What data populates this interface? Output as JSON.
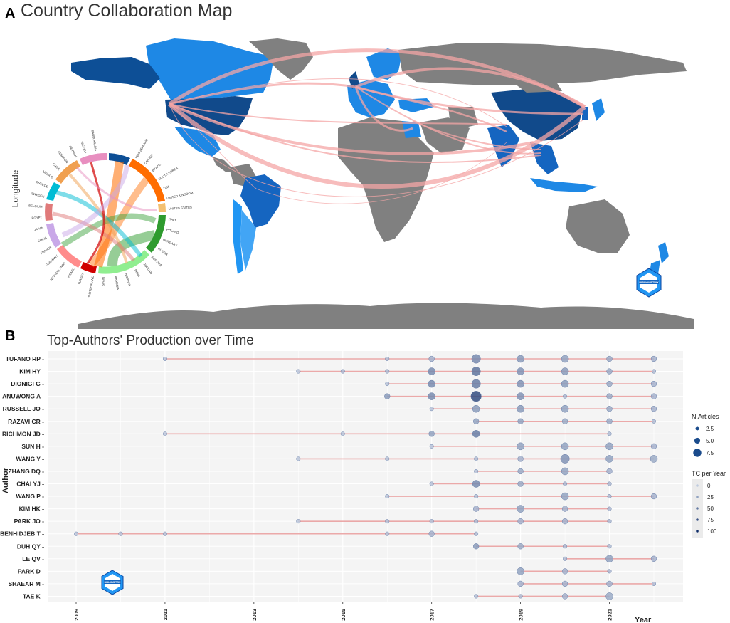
{
  "panelA": {
    "letter": "A",
    "title": "Country Collaboration Map",
    "ylabel": "Longitude",
    "logo_text": "BIBLIOMETRIX",
    "chord_labels": [
      "NEW ZEALAND",
      "CANADA",
      "BRAZIL",
      "SOUTH KOREA",
      "USA",
      "UNITED KINGDOM",
      "UNITED STATES",
      "ITALY",
      "POLAND",
      "HUNGARY",
      "RUSSIA",
      "AUSTRIA",
      "JORDAN",
      "INDIA",
      "NORWAY",
      "ARMENIA",
      "SPAIN",
      "SWITZERLAND",
      "TURKEY",
      "ISRAEL",
      "NETHERLANDS",
      "GERMANY",
      "FRANCE",
      "CHINA",
      "JAPAN",
      "EGYPT",
      "BELGIUM",
      "SWEDEN",
      "GREECE",
      "MEXICO",
      "CHILE",
      "LEBANON",
      "VIETNAM",
      "NIGERIA",
      "SAUDI ARABIA"
    ]
  },
  "panelB": {
    "letter": "B",
    "logo_text": "BIBLIOMETRIX"
  },
  "chart_data": {
    "type": "scatter",
    "title": "Top-Authors' Production over Time",
    "xlabel": "Year",
    "ylabel": "Author",
    "xlim": [
      2009,
      2022
    ],
    "x_ticks": [
      "2009",
      "2011",
      "2013",
      "2015",
      "2017",
      "2019",
      "2021"
    ],
    "authors": [
      "TUFANO RP",
      "KIM HY",
      "DIONIGI G",
      "ANUWONG A",
      "RUSSELL JO",
      "RAZAVI CR",
      "RICHMON JD",
      "SUN H",
      "WANG Y",
      "ZHANG DQ",
      "CHAI YJ",
      "WANG P",
      "KIM HK",
      "PARK JO",
      "BENHIDJEB T",
      "DUH QY",
      "LE QV",
      "PARK D",
      "SHAEAR M",
      "TAE K"
    ],
    "series": [
      {
        "author": "TUFANO RP",
        "points": [
          [
            2011,
            1,
            2
          ],
          [
            2016,
            1,
            5
          ],
          [
            2017,
            2,
            15
          ],
          [
            2018,
            4,
            40
          ],
          [
            2019,
            3,
            30
          ],
          [
            2020,
            3,
            25
          ],
          [
            2021,
            2,
            20
          ],
          [
            2022,
            2,
            15
          ]
        ]
      },
      {
        "author": "KIM HY",
        "points": [
          [
            2014,
            1,
            3
          ],
          [
            2015,
            1,
            10
          ],
          [
            2016,
            1,
            8
          ],
          [
            2017,
            3,
            40
          ],
          [
            2018,
            4,
            55
          ],
          [
            2019,
            3,
            35
          ],
          [
            2020,
            3,
            30
          ],
          [
            2021,
            2,
            20
          ],
          [
            2022,
            1,
            8
          ]
        ]
      },
      {
        "author": "DIONIGI G",
        "points": [
          [
            2016,
            1,
            5
          ],
          [
            2017,
            3,
            40
          ],
          [
            2018,
            4,
            50
          ],
          [
            2019,
            3,
            35
          ],
          [
            2020,
            3,
            30
          ],
          [
            2021,
            2,
            20
          ],
          [
            2022,
            2,
            15
          ]
        ]
      },
      {
        "author": "ANUWONG A",
        "points": [
          [
            2016,
            2,
            30
          ],
          [
            2017,
            3,
            40
          ],
          [
            2018,
            5,
            80
          ],
          [
            2019,
            3,
            35
          ],
          [
            2020,
            1,
            10
          ],
          [
            2021,
            2,
            20
          ],
          [
            2022,
            2,
            15
          ]
        ]
      },
      {
        "author": "RUSSELL JO",
        "points": [
          [
            2017,
            1,
            5
          ],
          [
            2018,
            3,
            30
          ],
          [
            2019,
            3,
            30
          ],
          [
            2020,
            3,
            25
          ],
          [
            2021,
            2,
            20
          ],
          [
            2022,
            2,
            15
          ]
        ]
      },
      {
        "author": "RAZAVI CR",
        "points": [
          [
            2018,
            2,
            25
          ],
          [
            2019,
            2,
            25
          ],
          [
            2020,
            2,
            20
          ],
          [
            2021,
            2,
            20
          ],
          [
            2022,
            1,
            8
          ]
        ]
      },
      {
        "author": "RICHMON JD",
        "points": [
          [
            2011,
            1,
            2
          ],
          [
            2015,
            1,
            4
          ],
          [
            2017,
            2,
            25
          ],
          [
            2018,
            3,
            50
          ],
          [
            2021,
            1,
            8
          ]
        ]
      },
      {
        "author": "SUN H",
        "points": [
          [
            2017,
            1,
            5
          ],
          [
            2019,
            3,
            25
          ],
          [
            2020,
            3,
            25
          ],
          [
            2021,
            3,
            25
          ],
          [
            2022,
            2,
            15
          ]
        ]
      },
      {
        "author": "WANG Y",
        "points": [
          [
            2014,
            1,
            3
          ],
          [
            2016,
            1,
            5
          ],
          [
            2018,
            1,
            8
          ],
          [
            2019,
            2,
            15
          ],
          [
            2020,
            4,
            35
          ],
          [
            2021,
            3,
            25
          ],
          [
            2022,
            3,
            20
          ]
        ]
      },
      {
        "author": "ZHANG DQ",
        "points": [
          [
            2018,
            1,
            5
          ],
          [
            2019,
            2,
            20
          ],
          [
            2020,
            3,
            25
          ],
          [
            2021,
            2,
            15
          ]
        ]
      },
      {
        "author": "CHAI YJ",
        "points": [
          [
            2017,
            1,
            5
          ],
          [
            2018,
            3,
            40
          ],
          [
            2019,
            2,
            20
          ],
          [
            2020,
            1,
            10
          ],
          [
            2021,
            1,
            10
          ]
        ]
      },
      {
        "author": "WANG P",
        "points": [
          [
            2016,
            1,
            4
          ],
          [
            2018,
            1,
            6
          ],
          [
            2020,
            3,
            25
          ],
          [
            2021,
            1,
            10
          ],
          [
            2022,
            2,
            15
          ]
        ]
      },
      {
        "author": "KIM HK",
        "points": [
          [
            2018,
            2,
            15
          ],
          [
            2019,
            3,
            25
          ],
          [
            2020,
            2,
            15
          ],
          [
            2021,
            1,
            10
          ]
        ]
      },
      {
        "author": "PARK JO",
        "points": [
          [
            2014,
            1,
            3
          ],
          [
            2016,
            1,
            5
          ],
          [
            2017,
            1,
            6
          ],
          [
            2018,
            1,
            8
          ],
          [
            2019,
            2,
            15
          ],
          [
            2020,
            2,
            15
          ],
          [
            2021,
            1,
            10
          ]
        ]
      },
      {
        "author": "BENHIDJEB T",
        "points": [
          [
            2009,
            1,
            1
          ],
          [
            2010,
            1,
            2
          ],
          [
            2011,
            1,
            2
          ],
          [
            2016,
            1,
            4
          ],
          [
            2017,
            2,
            15
          ],
          [
            2018,
            1,
            6
          ]
        ]
      },
      {
        "author": "DUH QY",
        "points": [
          [
            2018,
            2,
            30
          ],
          [
            2019,
            2,
            20
          ],
          [
            2020,
            1,
            8
          ],
          [
            2021,
            1,
            8
          ]
        ]
      },
      {
        "author": "LE QV",
        "points": [
          [
            2020,
            1,
            8
          ],
          [
            2021,
            3,
            25
          ],
          [
            2022,
            2,
            15
          ]
        ]
      },
      {
        "author": "PARK D",
        "points": [
          [
            2019,
            3,
            25
          ],
          [
            2020,
            2,
            15
          ],
          [
            2021,
            1,
            10
          ]
        ]
      },
      {
        "author": "SHAEAR M",
        "points": [
          [
            2019,
            2,
            15
          ],
          [
            2020,
            2,
            15
          ],
          [
            2021,
            2,
            15
          ],
          [
            2022,
            1,
            8
          ]
        ]
      },
      {
        "author": "TAE K",
        "points": [
          [
            2018,
            1,
            5
          ],
          [
            2019,
            1,
            8
          ],
          [
            2020,
            2,
            15
          ],
          [
            2021,
            3,
            20
          ]
        ]
      }
    ],
    "legend": {
      "size_title": "N.Articles",
      "size_values": [
        "2.5",
        "5.0",
        "7.5"
      ],
      "color_title": "TC per Year",
      "color_values": [
        "0",
        "25",
        "50",
        "75",
        "100"
      ]
    }
  }
}
